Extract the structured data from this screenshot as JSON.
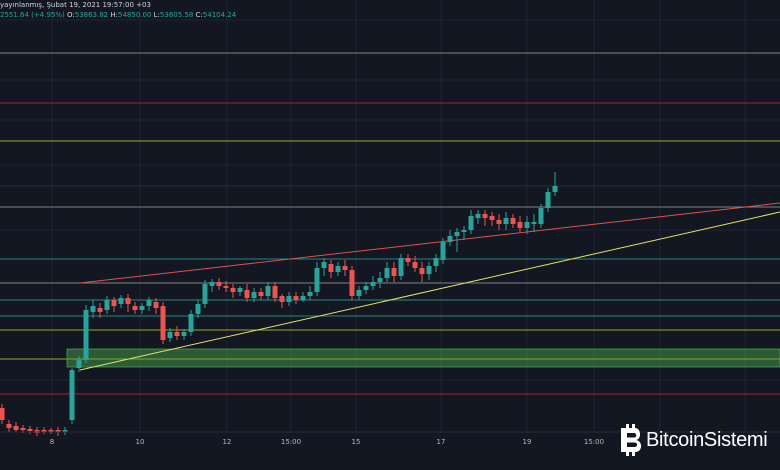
{
  "header": {
    "line1": "yayınlanmış, Şubat 19, 2021 19:57:00 +03",
    "change": "2551.64 (+4.95%)",
    "o_key": "O:",
    "o_val": "53863.82",
    "h_key": "H:",
    "h_val": "54850.00",
    "l_key": "L:",
    "l_val": "53605.58",
    "c_key": "C:",
    "c_val": "54104.24"
  },
  "x_axis_labels": [
    "8",
    "10",
    "12",
    "15:00",
    "15",
    "17",
    "19",
    "15:00"
  ],
  "logo": {
    "text": "BitcoinSistemi"
  },
  "colors": {
    "background": "#131722",
    "up": "#26a69a",
    "down": "#ef5350",
    "red_level": "#c62828",
    "yellow_level": "#c0ca33",
    "cyan_level": "#26a69a",
    "grey_level": "#9e9e9e",
    "trend_yellow": "#e6e36a",
    "trend_red": "#e05050",
    "zone": "#4caf50"
  },
  "levels": [
    {
      "color": "grey",
      "price": 58900
    },
    {
      "color": "red",
      "price": 57800
    },
    {
      "color": "yellow",
      "price": 56950
    },
    {
      "color": "grey",
      "price": 55450
    },
    {
      "color": "cyan",
      "price": 54250
    },
    {
      "color": "grey",
      "price": 48300
    },
    {
      "color": "cyan",
      "price": 46600
    },
    {
      "color": "cyan",
      "price": 45900
    },
    {
      "color": "yellow",
      "price": 44400
    },
    {
      "color": "yellow",
      "price": 43500
    },
    {
      "color": "red",
      "price": 42350
    }
  ],
  "zone": {
    "low": 43100,
    "high": 43800
  }
}
